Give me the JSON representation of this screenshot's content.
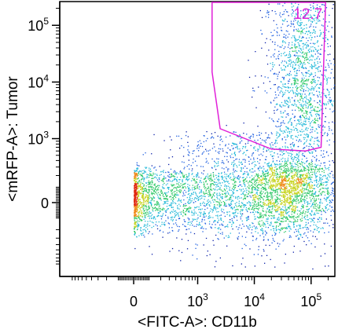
{
  "chart_data": {
    "type": "scatter",
    "subtype": "flow-cytometry density dot plot (biexponential axes)",
    "xlabel": "<FITC-A>: CD11b",
    "ylabel": "<mRFP-A>: Tumor",
    "x_ticks": [
      {
        "label": "0",
        "base": "0",
        "exp": "",
        "value": 0
      },
      {
        "label": "10^3",
        "base": "10",
        "exp": "3",
        "value": 1000
      },
      {
        "label": "10^4",
        "base": "10",
        "exp": "4",
        "value": 10000
      },
      {
        "label": "10^5",
        "base": "10",
        "exp": "5",
        "value": 100000
      }
    ],
    "y_ticks": [
      {
        "label": "0",
        "base": "0",
        "exp": "",
        "value": 0
      },
      {
        "label": "10^3",
        "base": "10",
        "exp": "3",
        "value": 1000
      },
      {
        "label": "10^4",
        "base": "10",
        "exp": "4",
        "value": 10000
      },
      {
        "label": "10^5",
        "base": "10",
        "exp": "5",
        "value": 100000
      }
    ],
    "xlim": [
      -1500,
      262144
    ],
    "ylim": [
      -1500,
      262144
    ],
    "scale": "biexponential",
    "grid": false,
    "legend": "none",
    "gate": {
      "percent": "12.7",
      "color": "#e020d8",
      "vertices": [
        [
          1800,
          262144
        ],
        [
          1800,
          15000
        ],
        [
          2500,
          1500
        ],
        [
          20000,
          650
        ],
        [
          80000,
          600
        ],
        [
          150000,
          700
        ],
        [
          180000,
          262144
        ]
      ]
    },
    "populations": [
      {
        "name": "",
        "x_center": 400,
        "y_center": 40,
        "x_spread_decades": 1.2,
        "y_spread": 120,
        "count": 2200,
        "peak_density": "high"
      },
      {
        "name": "",
        "x_center": 40000,
        "y_center": 60,
        "x_spread_decades": 0.45,
        "y_spread": 140,
        "count": 1800,
        "peak_density": "high"
      },
      {
        "name": "",
        "x_center": 8000,
        "y_center": 400,
        "x_spread_decades": 0.7,
        "y_spread": 500,
        "count": 700,
        "peak_density": "medium"
      },
      {
        "name": "",
        "x_center": 70000,
        "y_center": 12000,
        "x_spread_decades": 0.3,
        "y_spread_decades": 1.0,
        "count": 1700,
        "peak_density": "low"
      }
    ],
    "colormap": [
      "#0a1ea8",
      "#1f5fe0",
      "#22b8d8",
      "#33c96a",
      "#c8d423",
      "#f08a1c",
      "#e02a12"
    ]
  }
}
